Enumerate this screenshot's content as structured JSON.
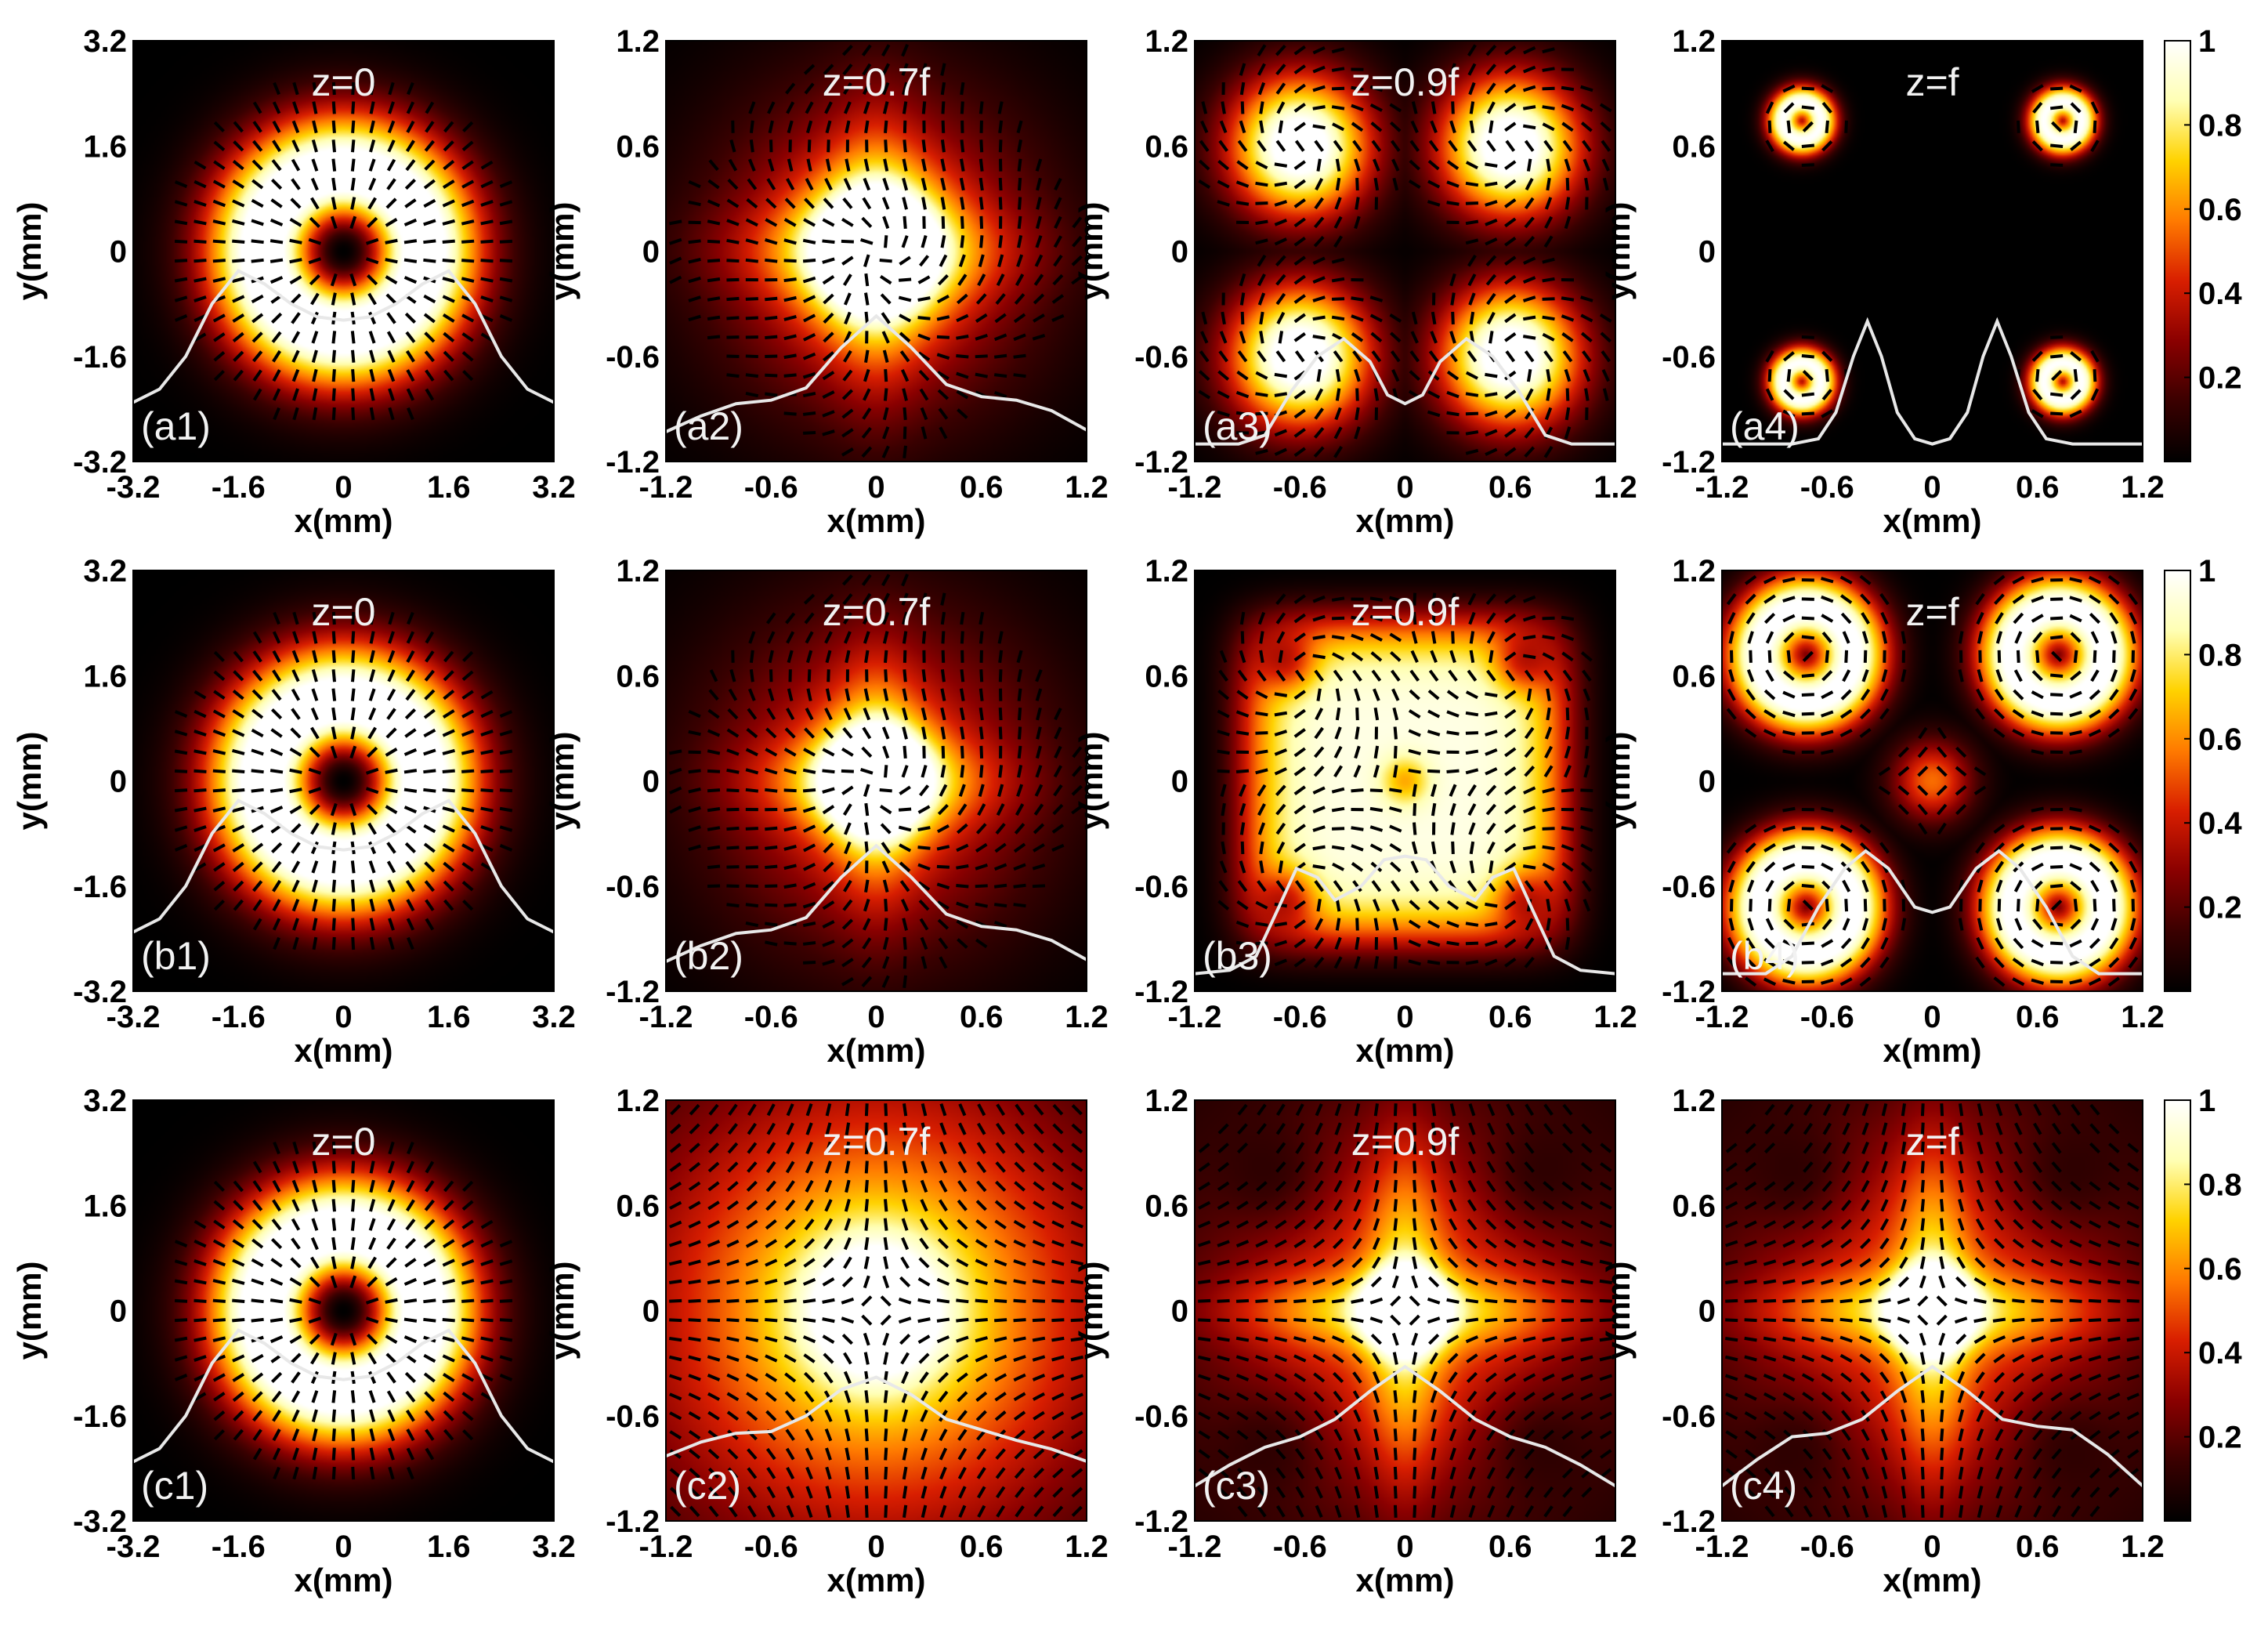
{
  "chart_data": {
    "type": "heatmap",
    "description_note": "",
    "x_label": "x(mm)",
    "y_label": "y(mm)",
    "colorbar": {
      "ticks": [
        "1",
        "0.8",
        "0.6",
        "0.4",
        "0.2"
      ],
      "tick_values": [
        1,
        0.8,
        0.6,
        0.4,
        0.2
      ],
      "range": [
        0,
        1
      ],
      "colormap": [
        "#000000",
        "#3a0000",
        "#8a0000",
        "#d81e00",
        "#ff7a00",
        "#ffd200",
        "#ffffb4",
        "#ffffff"
      ]
    },
    "panels": [
      {
        "id": "a1",
        "label": "(a1)",
        "z": "z=0",
        "extent": 3.2,
        "x_ticks": [
          "-3.2",
          "-1.6",
          "0",
          "1.6",
          "3.2"
        ],
        "y_ticks": [
          "3.2",
          "1.6",
          "0",
          "-1.6",
          "-3.2"
        ],
        "pattern": "donut",
        "vectors": "radial"
      },
      {
        "id": "a2",
        "label": "(a2)",
        "z": "z=0.7f",
        "extent": 1.2,
        "x_ticks": [
          "-1.2",
          "-0.6",
          "0",
          "0.6",
          "1.2"
        ],
        "y_ticks": [
          "1.2",
          "0.6",
          "0",
          "-0.6",
          "-1.2"
        ],
        "pattern": "center_cross",
        "vectors": "mixed"
      },
      {
        "id": "a3",
        "label": "(a3)",
        "z": "z=0.9f",
        "extent": 1.2,
        "x_ticks": [
          "-1.2",
          "-0.6",
          "0",
          "0.6",
          "1.2"
        ],
        "y_ticks": [
          "1.2",
          "0.6",
          "0",
          "-0.6",
          "-1.2"
        ],
        "pattern": "four_spots_large",
        "vectors": "swirl"
      },
      {
        "id": "a4",
        "label": "(a4)",
        "z": "z=f",
        "extent": 1.2,
        "x_ticks": [
          "-1.2",
          "-0.6",
          "0",
          "0.6",
          "1.2"
        ],
        "y_ticks": [
          "1.2",
          "0.6",
          "0",
          "-0.6",
          "-1.2"
        ],
        "pattern": "four_rings_small",
        "vectors": "azimuthal_local"
      },
      {
        "id": "b1",
        "label": "(b1)",
        "z": "z=0",
        "extent": 3.2,
        "x_ticks": [
          "-3.2",
          "-1.6",
          "0",
          "1.6",
          "3.2"
        ],
        "y_ticks": [
          "3.2",
          "1.6",
          "0",
          "-1.6",
          "-3.2"
        ],
        "pattern": "donut",
        "vectors": "radial"
      },
      {
        "id": "b2",
        "label": "(b2)",
        "z": "z=0.7f",
        "extent": 1.2,
        "x_ticks": [
          "-1.2",
          "-0.6",
          "0",
          "0.6",
          "1.2"
        ],
        "y_ticks": [
          "1.2",
          "0.6",
          "0",
          "-0.6",
          "-1.2"
        ],
        "pattern": "center_cross_dense",
        "vectors": "mixed"
      },
      {
        "id": "b3",
        "label": "(b3)",
        "z": "z=0.9f",
        "extent": 1.2,
        "x_ticks": [
          "-1.2",
          "-0.6",
          "0",
          "0.6",
          "1.2"
        ],
        "y_ticks": [
          "1.2",
          "0.6",
          "0",
          "-0.6",
          "-1.2"
        ],
        "pattern": "square_block",
        "vectors": "swirl"
      },
      {
        "id": "b4",
        "label": "(b4)",
        "z": "z=f",
        "extent": 1.2,
        "x_ticks": [
          "-1.2",
          "-0.6",
          "0",
          "0.6",
          "1.2"
        ],
        "y_ticks": [
          "1.2",
          "0.6",
          "0",
          "-0.6",
          "-1.2"
        ],
        "pattern": "four_rings_large",
        "vectors": "azimuthal_local"
      },
      {
        "id": "c1",
        "label": "(c1)",
        "z": "z=0",
        "extent": 3.2,
        "x_ticks": [
          "-3.2",
          "-1.6",
          "0",
          "1.6",
          "3.2"
        ],
        "y_ticks": [
          "3.2",
          "1.6",
          "0",
          "-1.6",
          "-3.2"
        ],
        "pattern": "donut",
        "vectors": "radial"
      },
      {
        "id": "c2",
        "label": "(c2)",
        "z": "z=0.7f",
        "extent": 1.2,
        "x_ticks": [
          "-1.2",
          "-0.6",
          "0",
          "0.6",
          "1.2"
        ],
        "y_ticks": [
          "1.2",
          "0.6",
          "0",
          "-0.6",
          "-1.2"
        ],
        "pattern": "center_broad",
        "vectors": "hyperbolic"
      },
      {
        "id": "c3",
        "label": "(c3)",
        "z": "z=0.9f",
        "extent": 1.2,
        "x_ticks": [
          "-1.2",
          "-0.6",
          "0",
          "0.6",
          "1.2"
        ],
        "y_ticks": [
          "1.2",
          "0.6",
          "0",
          "-0.6",
          "-1.2"
        ],
        "pattern": "center_cross_bright",
        "vectors": "hyperbolic"
      },
      {
        "id": "c4",
        "label": "(c4)",
        "z": "z=f",
        "extent": 1.2,
        "x_ticks": [
          "-1.2",
          "-0.6",
          "0",
          "0.6",
          "1.2"
        ],
        "y_ticks": [
          "1.2",
          "0.6",
          "0",
          "-0.6",
          "-1.2"
        ],
        "pattern": "center_cross_bright",
        "vectors": "hyperbolic"
      }
    ],
    "profile_lines": {
      "a1": [
        [
          -3.2,
          -2.3
        ],
        [
          -2.8,
          -2.1
        ],
        [
          -2.4,
          -1.6
        ],
        [
          -2.0,
          -0.8
        ],
        [
          -1.6,
          -0.3
        ],
        [
          -1.2,
          -0.5
        ],
        [
          -0.8,
          -0.8
        ],
        [
          -0.4,
          -1.0
        ],
        [
          0,
          -1.05
        ],
        [
          0.4,
          -1.0
        ],
        [
          0.8,
          -0.8
        ],
        [
          1.2,
          -0.5
        ],
        [
          1.6,
          -0.3
        ],
        [
          2.0,
          -0.8
        ],
        [
          2.4,
          -1.6
        ],
        [
          2.8,
          -2.1
        ],
        [
          3.2,
          -2.3
        ]
      ],
      "a2": [
        [
          -1.2,
          -1.03
        ],
        [
          -1.0,
          -0.94
        ],
        [
          -0.8,
          -0.87
        ],
        [
          -0.6,
          -0.85
        ],
        [
          -0.4,
          -0.78
        ],
        [
          -0.2,
          -0.55
        ],
        [
          0,
          -0.37
        ],
        [
          0.2,
          -0.55
        ],
        [
          0.4,
          -0.76
        ],
        [
          0.6,
          -0.83
        ],
        [
          0.8,
          -0.85
        ],
        [
          1.0,
          -0.91
        ],
        [
          1.2,
          -1.02
        ]
      ],
      "a3": [
        [
          -1.2,
          -1.1
        ],
        [
          -0.95,
          -1.1
        ],
        [
          -0.8,
          -1.05
        ],
        [
          -0.65,
          -0.8
        ],
        [
          -0.5,
          -0.6
        ],
        [
          -0.35,
          -0.5
        ],
        [
          -0.2,
          -0.63
        ],
        [
          -0.1,
          -0.82
        ],
        [
          0,
          -0.87
        ],
        [
          0.1,
          -0.82
        ],
        [
          0.2,
          -0.63
        ],
        [
          0.35,
          -0.5
        ],
        [
          0.5,
          -0.6
        ],
        [
          0.65,
          -0.8
        ],
        [
          0.8,
          -1.05
        ],
        [
          0.95,
          -1.1
        ],
        [
          1.2,
          -1.1
        ]
      ],
      "a4": [
        [
          -1.2,
          -1.1
        ],
        [
          -0.8,
          -1.1
        ],
        [
          -0.65,
          -1.07
        ],
        [
          -0.55,
          -0.92
        ],
        [
          -0.45,
          -0.6
        ],
        [
          -0.37,
          -0.4
        ],
        [
          -0.29,
          -0.6
        ],
        [
          -0.2,
          -0.92
        ],
        [
          -0.1,
          -1.07
        ],
        [
          0,
          -1.1
        ],
        [
          0.1,
          -1.07
        ],
        [
          0.2,
          -0.92
        ],
        [
          0.29,
          -0.6
        ],
        [
          0.37,
          -0.4
        ],
        [
          0.45,
          -0.6
        ],
        [
          0.55,
          -0.92
        ],
        [
          0.65,
          -1.07
        ],
        [
          0.8,
          -1.1
        ],
        [
          1.2,
          -1.1
        ]
      ],
      "b1": [
        [
          -3.2,
          -2.3
        ],
        [
          -2.8,
          -2.1
        ],
        [
          -2.4,
          -1.6
        ],
        [
          -2.0,
          -0.8
        ],
        [
          -1.6,
          -0.3
        ],
        [
          -1.2,
          -0.5
        ],
        [
          -0.8,
          -0.8
        ],
        [
          -0.4,
          -1.0
        ],
        [
          0,
          -1.05
        ],
        [
          0.4,
          -1.0
        ],
        [
          0.8,
          -0.8
        ],
        [
          1.2,
          -0.5
        ],
        [
          1.6,
          -0.3
        ],
        [
          2.0,
          -0.8
        ],
        [
          2.4,
          -1.6
        ],
        [
          2.8,
          -2.1
        ],
        [
          3.2,
          -2.3
        ]
      ],
      "b2": [
        [
          -1.2,
          -1.03
        ],
        [
          -1.0,
          -0.94
        ],
        [
          -0.8,
          -0.87
        ],
        [
          -0.6,
          -0.85
        ],
        [
          -0.4,
          -0.78
        ],
        [
          -0.2,
          -0.55
        ],
        [
          0,
          -0.37
        ],
        [
          0.2,
          -0.55
        ],
        [
          0.4,
          -0.76
        ],
        [
          0.6,
          -0.83
        ],
        [
          0.8,
          -0.85
        ],
        [
          1.0,
          -0.91
        ],
        [
          1.2,
          -1.02
        ]
      ],
      "b3": [
        [
          -1.2,
          -1.1
        ],
        [
          -1.0,
          -1.08
        ],
        [
          -0.85,
          -1.0
        ],
        [
          -0.72,
          -0.72
        ],
        [
          -0.62,
          -0.5
        ],
        [
          -0.5,
          -0.55
        ],
        [
          -0.4,
          -0.68
        ],
        [
          -0.25,
          -0.6
        ],
        [
          -0.12,
          -0.45
        ],
        [
          0,
          -0.43
        ],
        [
          0.12,
          -0.45
        ],
        [
          0.25,
          -0.6
        ],
        [
          0.4,
          -0.68
        ],
        [
          0.5,
          -0.55
        ],
        [
          0.62,
          -0.5
        ],
        [
          0.72,
          -0.72
        ],
        [
          0.85,
          -1.0
        ],
        [
          1.0,
          -1.08
        ],
        [
          1.2,
          -1.1
        ]
      ],
      "b4": [
        [
          -1.2,
          -1.1
        ],
        [
          -0.95,
          -1.1
        ],
        [
          -0.8,
          -1.0
        ],
        [
          -0.65,
          -0.72
        ],
        [
          -0.5,
          -0.5
        ],
        [
          -0.38,
          -0.4
        ],
        [
          -0.25,
          -0.5
        ],
        [
          -0.1,
          -0.72
        ],
        [
          0,
          -0.75
        ],
        [
          0.1,
          -0.72
        ],
        [
          0.25,
          -0.5
        ],
        [
          0.38,
          -0.4
        ],
        [
          0.5,
          -0.5
        ],
        [
          0.65,
          -0.72
        ],
        [
          0.8,
          -1.0
        ],
        [
          0.95,
          -1.1
        ],
        [
          1.2,
          -1.1
        ]
      ],
      "c1": [
        [
          -3.2,
          -2.3
        ],
        [
          -2.8,
          -2.1
        ],
        [
          -2.4,
          -1.6
        ],
        [
          -2.0,
          -0.8
        ],
        [
          -1.6,
          -0.3
        ],
        [
          -1.2,
          -0.5
        ],
        [
          -0.8,
          -0.8
        ],
        [
          -0.4,
          -1.0
        ],
        [
          0,
          -1.05
        ],
        [
          0.4,
          -1.0
        ],
        [
          0.8,
          -0.8
        ],
        [
          1.2,
          -0.5
        ],
        [
          1.6,
          -0.3
        ],
        [
          2.0,
          -0.8
        ],
        [
          2.4,
          -1.6
        ],
        [
          2.8,
          -2.1
        ],
        [
          3.2,
          -2.3
        ]
      ],
      "c2": [
        [
          -1.2,
          -0.83
        ],
        [
          -1.0,
          -0.75
        ],
        [
          -0.8,
          -0.7
        ],
        [
          -0.6,
          -0.69
        ],
        [
          -0.4,
          -0.6
        ],
        [
          -0.2,
          -0.45
        ],
        [
          0,
          -0.38
        ],
        [
          0.2,
          -0.48
        ],
        [
          0.4,
          -0.62
        ],
        [
          0.6,
          -0.68
        ],
        [
          0.8,
          -0.74
        ],
        [
          1.0,
          -0.79
        ],
        [
          1.2,
          -0.86
        ]
      ],
      "c3": [
        [
          -1.2,
          -1.0
        ],
        [
          -1.0,
          -0.88
        ],
        [
          -0.8,
          -0.78
        ],
        [
          -0.6,
          -0.72
        ],
        [
          -0.4,
          -0.62
        ],
        [
          -0.2,
          -0.46
        ],
        [
          0,
          -0.32
        ],
        [
          0.2,
          -0.46
        ],
        [
          0.4,
          -0.62
        ],
        [
          0.6,
          -0.72
        ],
        [
          0.8,
          -0.78
        ],
        [
          1.0,
          -0.88
        ],
        [
          1.2,
          -1.0
        ]
      ],
      "c4": [
        [
          -1.2,
          -1.0
        ],
        [
          -1.0,
          -0.85
        ],
        [
          -0.8,
          -0.72
        ],
        [
          -0.6,
          -0.7
        ],
        [
          -0.4,
          -0.62
        ],
        [
          -0.2,
          -0.46
        ],
        [
          0,
          -0.32
        ],
        [
          0.2,
          -0.46
        ],
        [
          0.4,
          -0.62
        ],
        [
          0.6,
          -0.66
        ],
        [
          0.8,
          -0.68
        ],
        [
          1.0,
          -0.82
        ],
        [
          1.2,
          -1.0
        ]
      ]
    }
  }
}
